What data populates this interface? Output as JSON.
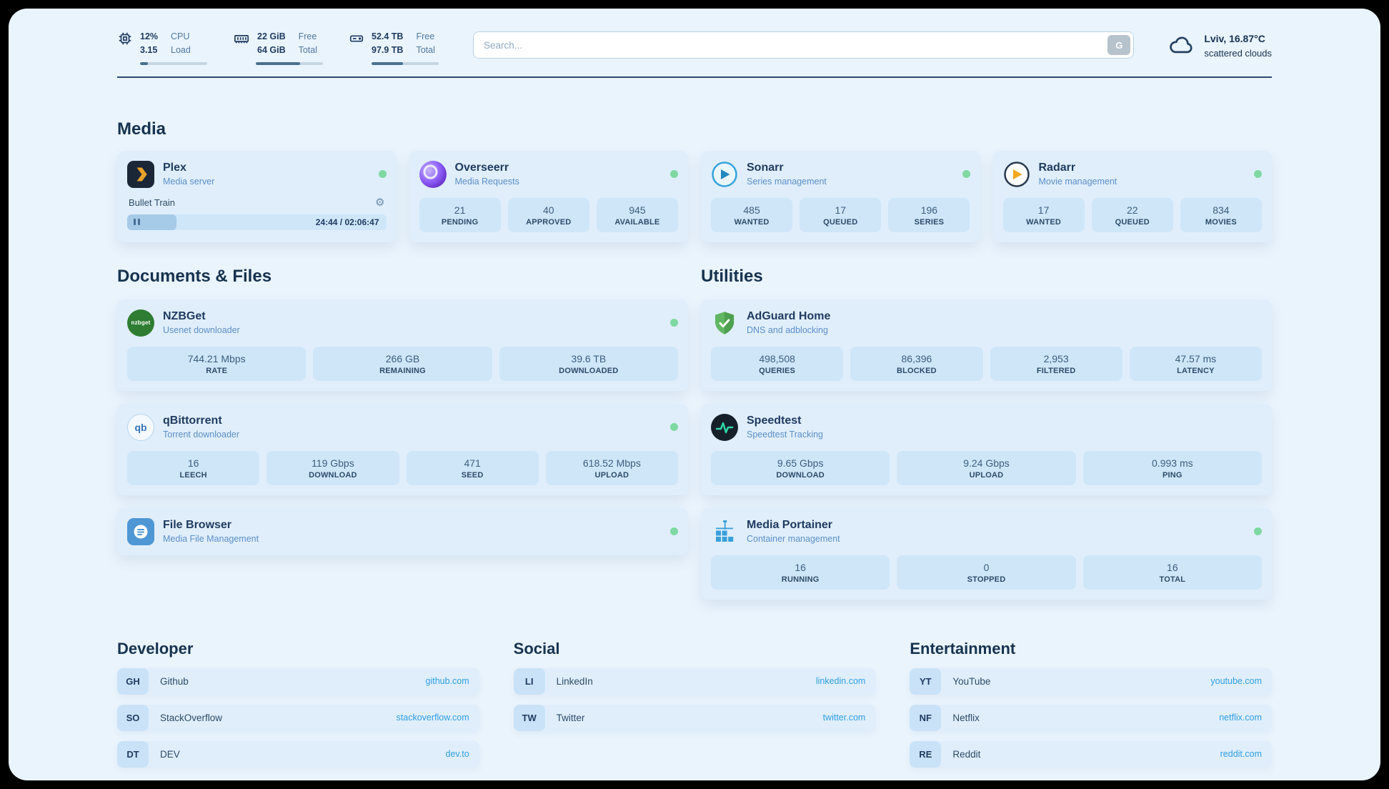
{
  "topbar": {
    "cpu": {
      "value1": "12%",
      "value2": "3.15",
      "label1": "CPU",
      "label2": "Load",
      "progress": 12
    },
    "ram": {
      "value1": "22 GiB",
      "value2": "64 GiB",
      "label1": "Free",
      "label2": "Total",
      "progress": 66
    },
    "disk": {
      "value1": "52.4 TB",
      "value2": "97.9 TB",
      "label1": "Free",
      "label2": "Total",
      "progress": 47
    },
    "search_placeholder": "Search...",
    "search_button": "G",
    "weather_line1": "Lviv, 16.87°C",
    "weather_line2": "scattered clouds"
  },
  "media": {
    "heading": "Media",
    "plex": {
      "title": "Plex",
      "subtitle": "Media server",
      "now_playing": "Bullet Train",
      "time": "24:44 / 02:06:47",
      "progress": 19
    },
    "overseerr": {
      "title": "Overseerr",
      "subtitle": "Media Requests",
      "stats": [
        {
          "value": "21",
          "label": "PENDING"
        },
        {
          "value": "40",
          "label": "APPROVED"
        },
        {
          "value": "945",
          "label": "AVAILABLE"
        }
      ]
    },
    "sonarr": {
      "title": "Sonarr",
      "subtitle": "Series management",
      "stats": [
        {
          "value": "485",
          "label": "WANTED"
        },
        {
          "value": "17",
          "label": "QUEUED"
        },
        {
          "value": "196",
          "label": "SERIES"
        }
      ]
    },
    "radarr": {
      "title": "Radarr",
      "subtitle": "Movie management",
      "stats": [
        {
          "value": "17",
          "label": "WANTED"
        },
        {
          "value": "22",
          "label": "QUEUED"
        },
        {
          "value": "834",
          "label": "MOVIES"
        }
      ]
    }
  },
  "documents": {
    "heading": "Documents & Files",
    "nzbget": {
      "title": "NZBGet",
      "subtitle": "Usenet downloader",
      "icon_text": "nzbget",
      "stats": [
        {
          "value": "744.21 Mbps",
          "label": "RATE"
        },
        {
          "value": "266 GB",
          "label": "REMAINING"
        },
        {
          "value": "39.6 TB",
          "label": "DOWNLOADED"
        }
      ]
    },
    "qbittorrent": {
      "title": "qBittorrent",
      "subtitle": "Torrent downloader",
      "icon_text": "qb",
      "stats": [
        {
          "value": "16",
          "label": "LEECH"
        },
        {
          "value": "119 Gbps",
          "label": "DOWNLOAD"
        },
        {
          "value": "471",
          "label": "SEED"
        },
        {
          "value": "618.52 Mbps",
          "label": "UPLOAD"
        }
      ]
    },
    "filebrowser": {
      "title": "File Browser",
      "subtitle": "Media File Management"
    }
  },
  "utilities": {
    "heading": "Utilities",
    "adguard": {
      "title": "AdGuard Home",
      "subtitle": "DNS and adblocking",
      "stats": [
        {
          "value": "498,508",
          "label": "QUERIES"
        },
        {
          "value": "86,396",
          "label": "BLOCKED"
        },
        {
          "value": "2,953",
          "label": "FILTERED"
        },
        {
          "value": "47.57 ms",
          "label": "LATENCY"
        }
      ]
    },
    "speedtest": {
      "title": "Speedtest",
      "subtitle": "Speedtest Tracking",
      "stats": [
        {
          "value": "9.65 Gbps",
          "label": "DOWNLOAD"
        },
        {
          "value": "9.24 Gbps",
          "label": "UPLOAD"
        },
        {
          "value": "0.993 ms",
          "label": "PING"
        }
      ]
    },
    "portainer": {
      "title": "Media Portainer",
      "subtitle": "Container management",
      "stats": [
        {
          "value": "16",
          "label": "RUNNING"
        },
        {
          "value": "0",
          "label": "STOPPED"
        },
        {
          "value": "16",
          "label": "TOTAL"
        }
      ]
    }
  },
  "links": {
    "developer": {
      "heading": "Developer",
      "items": [
        {
          "abbr": "GH",
          "name": "Github",
          "url": "github.com"
        },
        {
          "abbr": "SO",
          "name": "StackOverflow",
          "url": "stackoverflow.com"
        },
        {
          "abbr": "DT",
          "name": "DEV",
          "url": "dev.to"
        }
      ]
    },
    "social": {
      "heading": "Social",
      "items": [
        {
          "abbr": "LI",
          "name": "LinkedIn",
          "url": "linkedin.com"
        },
        {
          "abbr": "TW",
          "name": "Twitter",
          "url": "twitter.com"
        }
      ]
    },
    "entertainment": {
      "heading": "Entertainment",
      "items": [
        {
          "abbr": "YT",
          "name": "YouTube",
          "url": "youtube.com"
        },
        {
          "abbr": "NF",
          "name": "Netflix",
          "url": "netflix.com"
        },
        {
          "abbr": "RE",
          "name": "Reddit",
          "url": "reddit.com"
        }
      ]
    }
  }
}
